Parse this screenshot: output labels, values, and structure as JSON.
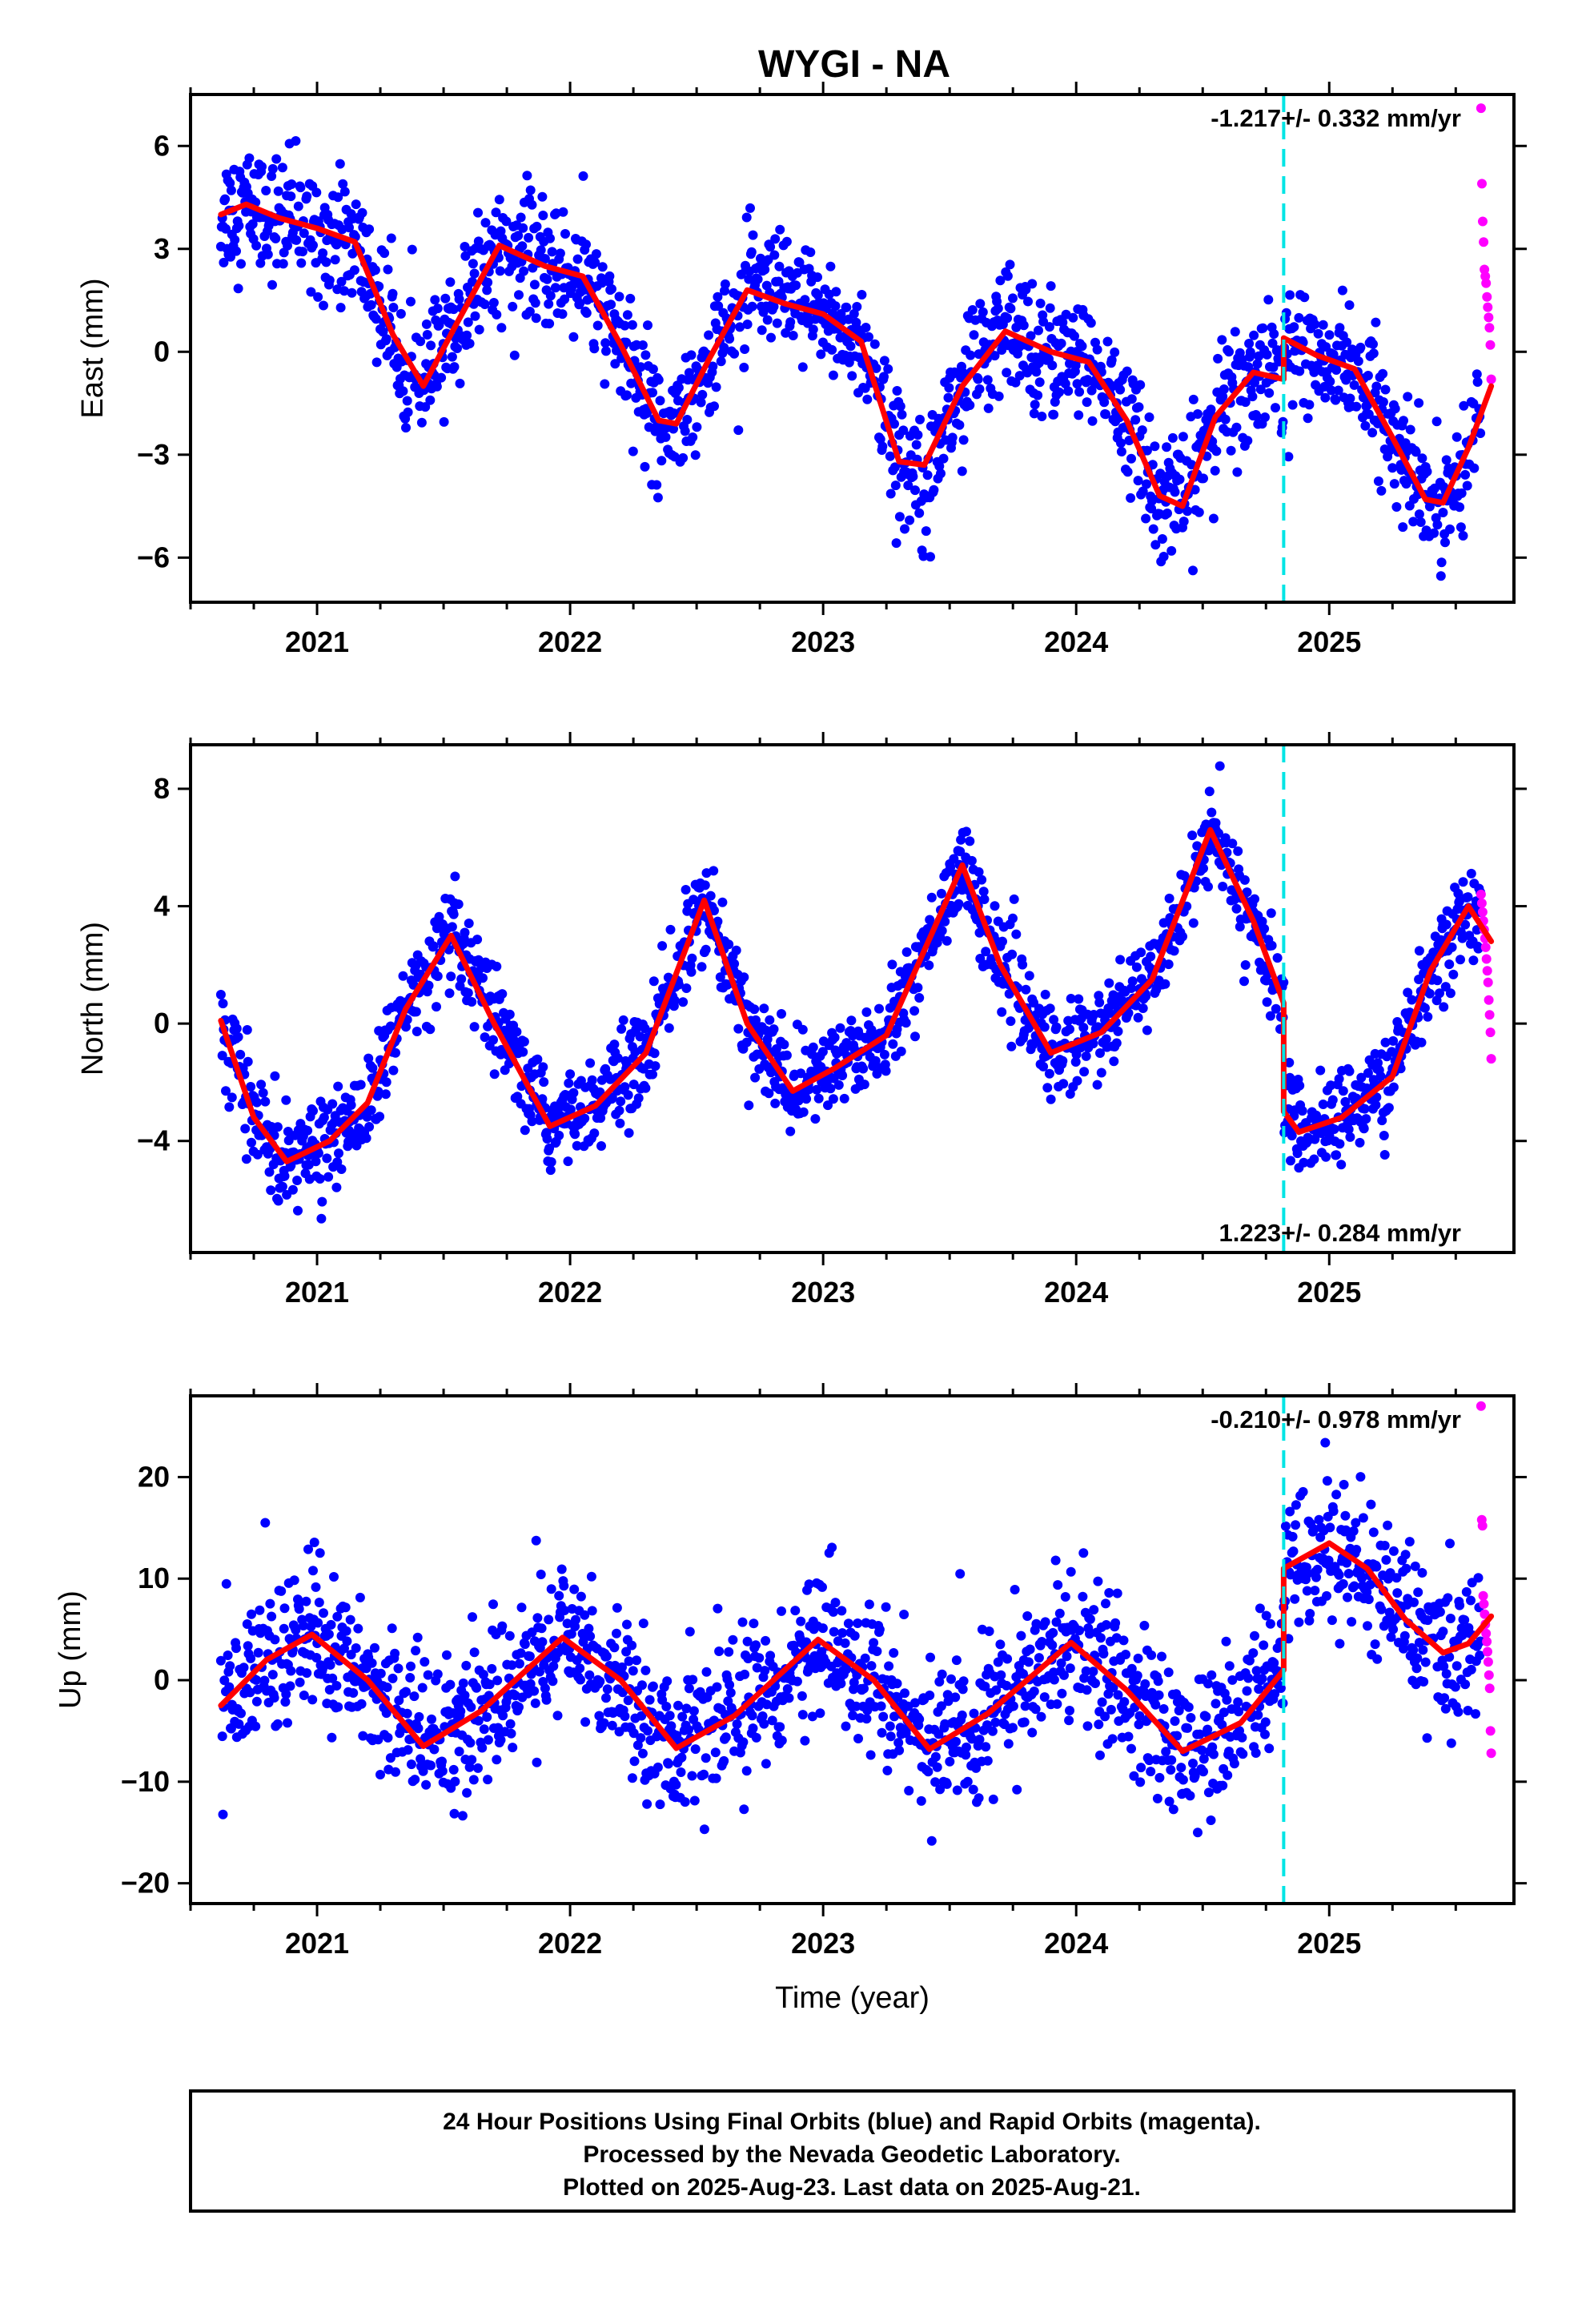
{
  "title": "WYGI - NA",
  "colors": {
    "final": "#0000ff",
    "rapid": "#ff00ff",
    "model": "#ff0000",
    "event": "#00e5e5"
  },
  "chart_data": [
    {
      "type": "scatter",
      "id": "east",
      "ylabel": "East (mm)",
      "xlim": [
        2020.5,
        2025.73
      ],
      "ylim": [
        -7.3,
        7.5
      ],
      "yticks": [
        6,
        3,
        0,
        -3,
        -6
      ],
      "ytick_labels": [
        "6",
        "3",
        "0",
        "−3",
        "−6"
      ],
      "xticks": [
        2021,
        2022,
        2023,
        2024,
        2025
      ],
      "xtick_labels": [
        "2021",
        "2022",
        "2023",
        "2024",
        "2025"
      ],
      "event_line_x": 2024.82,
      "rate_label": "-1.217+/- 0.332 mm/yr",
      "rate_position": "top-right",
      "data_start": 2020.62,
      "rapid_start": 2025.6,
      "data_end": 2025.64,
      "model_knots": {
        "x": [
          2020.62,
          2020.72,
          2020.85,
          2021.0,
          2021.15,
          2021.3,
          2021.42,
          2021.55,
          2021.72,
          2021.9,
          2022.05,
          2022.2,
          2022.35,
          2022.42,
          2022.55,
          2022.7,
          2022.85,
          2023.0,
          2023.15,
          2023.3,
          2023.4,
          2023.55,
          2023.72,
          2023.9,
          2024.05,
          2024.2,
          2024.33,
          2024.42,
          2024.55,
          2024.7,
          2024.82,
          2024.8201,
          2024.95,
          2025.1,
          2025.25,
          2025.38,
          2025.45,
          2025.55,
          2025.64
        ],
        "y": [
          4.0,
          4.3,
          3.9,
          3.6,
          3.2,
          0.5,
          -1.0,
          0.8,
          3.1,
          2.5,
          2.2,
          0.2,
          -2.0,
          -2.1,
          -0.2,
          1.8,
          1.4,
          1.1,
          0.3,
          -3.2,
          -3.3,
          -1.0,
          0.6,
          0.0,
          -0.3,
          -2.0,
          -4.2,
          -4.5,
          -1.9,
          -0.6,
          -0.8,
          0.4,
          -0.1,
          -0.5,
          -2.5,
          -4.3,
          -4.4,
          -2.8,
          -1.0
        ]
      },
      "scatter_sd": 0.9,
      "rapid_points_y": [
        7.1,
        4.9,
        3.8,
        3.2,
        2.4,
        2.2,
        2.0,
        1.6,
        1.3,
        1.0,
        0.7,
        0.2,
        -0.8
      ]
    },
    {
      "type": "scatter",
      "id": "north",
      "ylabel": "North (mm)",
      "xlim": [
        2020.5,
        2025.73
      ],
      "ylim": [
        -7.8,
        9.5
      ],
      "yticks": [
        8,
        4,
        0,
        -4
      ],
      "ytick_labels": [
        "8",
        "4",
        "0",
        "−4"
      ],
      "xticks": [
        2021,
        2022,
        2023,
        2024,
        2025
      ],
      "xtick_labels": [
        "2021",
        "2022",
        "2023",
        "2024",
        "2025"
      ],
      "event_line_x": 2024.82,
      "rate_label": "1.223+/- 0.284 mm/yr",
      "rate_position": "bottom-right",
      "data_start": 2020.62,
      "rapid_start": 2025.6,
      "data_end": 2025.64,
      "model_knots": {
        "x": [
          2020.62,
          2020.75,
          2020.88,
          2021.05,
          2021.2,
          2021.35,
          2021.53,
          2021.7,
          2021.92,
          2022.1,
          2022.3,
          2022.53,
          2022.7,
          2022.88,
          2023.05,
          2023.25,
          2023.55,
          2023.7,
          2023.9,
          2024.1,
          2024.3,
          2024.53,
          2024.7,
          2024.82,
          2024.8201,
          2024.88,
          2025.05,
          2025.25,
          2025.4,
          2025.55,
          2025.64
        ],
        "y": [
          0.1,
          -3.2,
          -4.7,
          -4.0,
          -2.7,
          0.5,
          3.0,
          0.0,
          -3.5,
          -2.8,
          -1.0,
          4.2,
          0.0,
          -2.3,
          -1.5,
          -0.4,
          5.4,
          2.0,
          -1.0,
          -0.3,
          1.5,
          6.6,
          3.5,
          0.7,
          -3.0,
          -3.7,
          -3.2,
          -1.8,
          1.8,
          4.0,
          2.8
        ]
      },
      "scatter_sd": 0.8,
      "rapid_points_y": [
        4.4,
        4.1,
        3.8,
        3.5,
        3.2,
        2.9,
        2.6,
        2.2,
        1.8,
        1.4,
        0.8,
        0.3,
        -0.3,
        -1.2
      ]
    },
    {
      "type": "scatter",
      "id": "up",
      "ylabel": "Up (mm)",
      "xlabel": "Time (year)",
      "xlim": [
        2020.5,
        2025.73
      ],
      "ylim": [
        -22,
        28
      ],
      "yticks": [
        20,
        10,
        0,
        -10,
        -20
      ],
      "ytick_labels": [
        "20",
        "10",
        "0",
        "−10",
        "−20"
      ],
      "xticks": [
        2021,
        2022,
        2023,
        2024,
        2025
      ],
      "xtick_labels": [
        "2021",
        "2022",
        "2023",
        "2024",
        "2025"
      ],
      "event_line_x": 2024.82,
      "rate_label": "-0.210+/- 0.978 mm/yr",
      "rate_position": "top-right",
      "data_start": 2020.62,
      "rapid_start": 2025.6,
      "data_end": 2025.64,
      "model_knots": {
        "x": [
          2020.62,
          2020.8,
          2020.98,
          2021.2,
          2021.42,
          2021.65,
          2021.97,
          2022.2,
          2022.42,
          2022.65,
          2022.98,
          2023.2,
          2023.42,
          2023.65,
          2023.98,
          2024.2,
          2024.42,
          2024.65,
          2024.82,
          2024.8201,
          2025.0,
          2025.15,
          2025.3,
          2025.45,
          2025.55,
          2025.64
        ],
        "y": [
          -2.5,
          2.0,
          4.5,
          0.0,
          -6.5,
          -3.0,
          4.2,
          0.0,
          -6.7,
          -3.5,
          4.0,
          0.0,
          -6.8,
          -3.3,
          3.7,
          -1.0,
          -7.0,
          -4.2,
          1.0,
          11.0,
          13.5,
          11.0,
          6.0,
          2.7,
          3.6,
          6.3
        ]
      },
      "scatter_sd": 3.6,
      "rapid_points_y": [
        27.0,
        15.8,
        15.2,
        8.3,
        7.5,
        6.5,
        5.5,
        4.6,
        3.8,
        2.8,
        1.8,
        0.5,
        -0.8,
        -5.0,
        -7.2
      ]
    }
  ],
  "footer": {
    "line1": "24 Hour Positions Using Final Orbits (blue) and Rapid Orbits (magenta).",
    "line2": "Processed by the Nevada Geodetic Laboratory.",
    "line3": "Plotted on 2025-Aug-23. Last data on 2025-Aug-21."
  }
}
